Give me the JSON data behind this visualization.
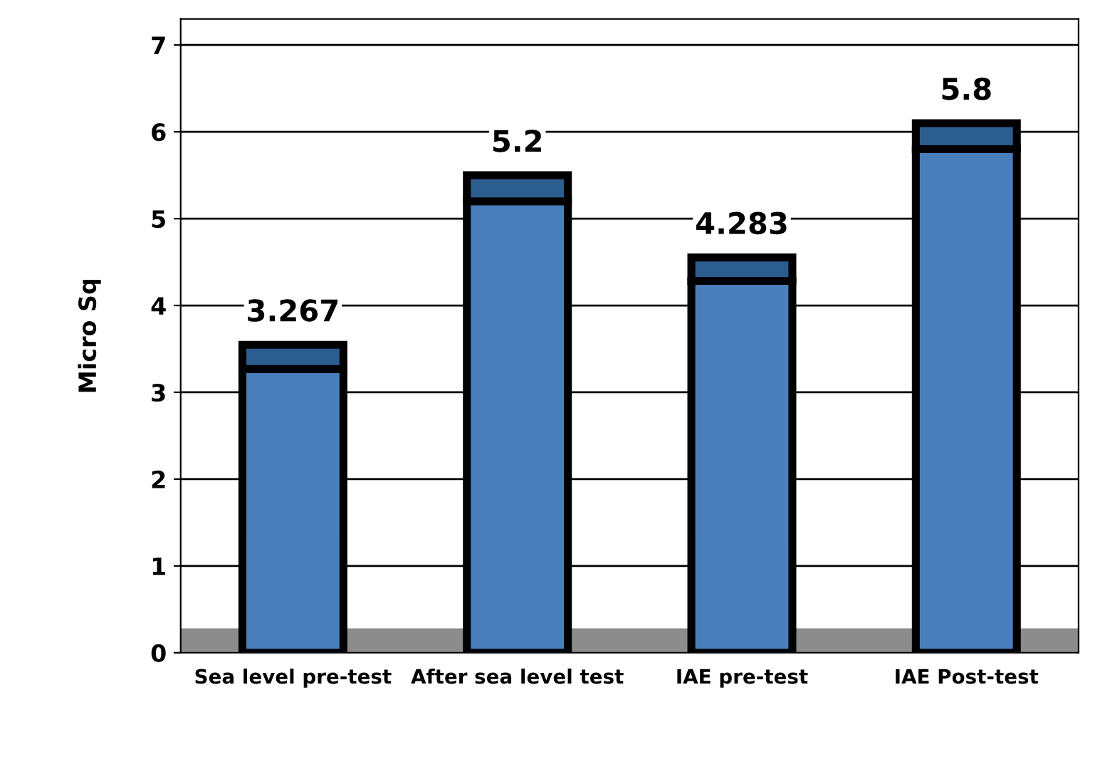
{
  "chart_data": {
    "type": "bar",
    "stacked": true,
    "ylabel": "Micro Sq",
    "categories": [
      "Sea level pre-test",
      "After sea level test",
      "IAE pre-test",
      "IAE Post-test"
    ],
    "series": [
      {
        "color": "#4a7ebb",
        "values": [
          3.267,
          5.2,
          4.283,
          5.8
        ],
        "value_labels": [
          "3.267",
          "5.2",
          "4.283",
          "5.8"
        ]
      },
      {
        "color": "#2c5d8f",
        "values": [
          0.28,
          0.3,
          0.27,
          0.3
        ]
      }
    ],
    "ylim": [
      0,
      7.3
    ],
    "yticks": [
      0,
      1,
      2,
      3,
      4,
      5,
      6,
      7
    ],
    "grid": "y",
    "bands": [
      {
        "axis": "y",
        "from": 0,
        "to": 0.28,
        "color": "#8c8c8c"
      }
    ]
  }
}
